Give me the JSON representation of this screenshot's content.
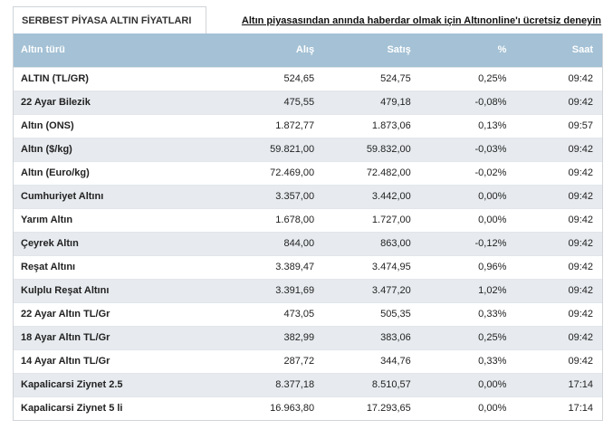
{
  "tab": {
    "label": "SERBEST PİYASA ALTIN FİYATLARI"
  },
  "promo": {
    "text": "Altın piyasasından anında haberdar olmak için Altınonline'ı ücretsiz deneyin"
  },
  "table": {
    "headers": [
      "Altın türü",
      "Alış",
      "Satış",
      "%",
      "Saat"
    ],
    "rows": [
      {
        "name": "ALTIN (TL/GR)",
        "alis": "524,65",
        "satis": "524,75",
        "pct": "0,25%",
        "saat": "09:42"
      },
      {
        "name": "22 Ayar Bilezik",
        "alis": "475,55",
        "satis": "479,18",
        "pct": "-0,08%",
        "saat": "09:42"
      },
      {
        "name": "Altın (ONS)",
        "alis": "1.872,77",
        "satis": "1.873,06",
        "pct": "0,13%",
        "saat": "09:57"
      },
      {
        "name": "Altın ($/kg)",
        "alis": "59.821,00",
        "satis": "59.832,00",
        "pct": "-0,03%",
        "saat": "09:42"
      },
      {
        "name": "Altın (Euro/kg)",
        "alis": "72.469,00",
        "satis": "72.482,00",
        "pct": "-0,02%",
        "saat": "09:42"
      },
      {
        "name": "Cumhuriyet Altını",
        "alis": "3.357,00",
        "satis": "3.442,00",
        "pct": "0,00%",
        "saat": "09:42"
      },
      {
        "name": "Yarım Altın",
        "alis": "1.678,00",
        "satis": "1.727,00",
        "pct": "0,00%",
        "saat": "09:42"
      },
      {
        "name": "Çeyrek Altın",
        "alis": "844,00",
        "satis": "863,00",
        "pct": "-0,12%",
        "saat": "09:42"
      },
      {
        "name": "Reşat Altını",
        "alis": "3.389,47",
        "satis": "3.474,95",
        "pct": "0,96%",
        "saat": "09:42"
      },
      {
        "name": "Kulplu Reşat Altını",
        "alis": "3.391,69",
        "satis": "3.477,20",
        "pct": "1,02%",
        "saat": "09:42"
      },
      {
        "name": "22 Ayar Altın TL/Gr",
        "alis": "473,05",
        "satis": "505,35",
        "pct": "0,33%",
        "saat": "09:42"
      },
      {
        "name": "18 Ayar Altın TL/Gr",
        "alis": "382,99",
        "satis": "383,06",
        "pct": "0,25%",
        "saat": "09:42"
      },
      {
        "name": "14 Ayar Altın TL/Gr",
        "alis": "287,72",
        "satis": "344,76",
        "pct": "0,33%",
        "saat": "09:42"
      },
      {
        "name": "Kapalicarsi Ziynet 2.5",
        "alis": "8.377,18",
        "satis": "8.510,57",
        "pct": "0,00%",
        "saat": "17:14"
      },
      {
        "name": "Kapalicarsi Ziynet 5 li",
        "alis": "16.963,80",
        "satis": "17.293,65",
        "pct": "0,00%",
        "saat": "17:14"
      }
    ]
  }
}
